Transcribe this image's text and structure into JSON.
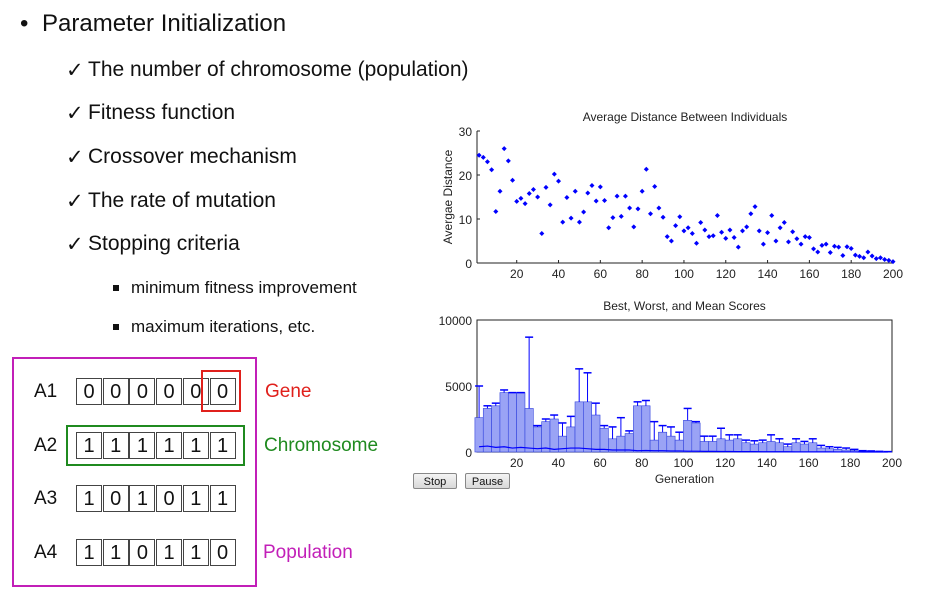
{
  "slide": {
    "title": "Parameter Initialization",
    "checks": [
      "The number of chromosome (population)",
      "Fitness function",
      "Crossover mechanism",
      "The rate of mutation",
      "Stopping criteria"
    ],
    "subs": [
      "minimum fitness improvement",
      "maximum iterations, etc."
    ],
    "check_mark": "✓",
    "bullet": "•"
  },
  "diagram": {
    "rows": [
      {
        "label": "A1",
        "genes": [
          "0",
          "0",
          "0",
          "0",
          "0",
          "0"
        ]
      },
      {
        "label": "A2",
        "genes": [
          "1",
          "1",
          "1",
          "1",
          "1",
          "1"
        ]
      },
      {
        "label": "A3",
        "genes": [
          "1",
          "0",
          "1",
          "0",
          "1",
          "1"
        ]
      },
      {
        "label": "A4",
        "genes": [
          "1",
          "1",
          "0",
          "1",
          "1",
          "0"
        ]
      }
    ],
    "gene_label": "Gene",
    "chromosome_label": "Chromosome",
    "population_label": "Population",
    "colors": {
      "gene": "#e0201c",
      "chromosome": "#1f8a1f",
      "population": "#c21fb8"
    }
  },
  "buttons": {
    "stop": "Stop",
    "pause": "Pause"
  },
  "chart_data": [
    {
      "type": "scatter",
      "title": "Average Distance Between Individuals",
      "xlabel": "",
      "ylabel": "Avergae Distance",
      "xlim": [
        1,
        200
      ],
      "ylim": [
        0,
        30
      ],
      "xticks": [
        20,
        40,
        60,
        80,
        100,
        120,
        140,
        160,
        180,
        200
      ],
      "yticks": [
        0,
        10,
        20,
        30
      ],
      "color": "#0000ff",
      "x_step": 2,
      "y": [
        24.5,
        24,
        23,
        21.2,
        11.7,
        16.3,
        26,
        23.2,
        18.8,
        14,
        14.7,
        13.5,
        15.8,
        16.7,
        15,
        6.7,
        17.2,
        13.2,
        20.2,
        18.6,
        9.3,
        14.9,
        10.2,
        16.3,
        9.3,
        11.6,
        15.9,
        17.6,
        14.1,
        17.3,
        14.2,
        8,
        10.3,
        15.2,
        10.6,
        15.2,
        12.5,
        8.2,
        12.3,
        16.3,
        21.3,
        11.2,
        17.4,
        12.5,
        10.4,
        6,
        5,
        8.5,
        10.5,
        7.3,
        8,
        6.7,
        4.5,
        9.2,
        7.5,
        6,
        6.2,
        10.8,
        7,
        5.6,
        7.5,
        5.8,
        3.6,
        7.3,
        8.2,
        11.2,
        12.8,
        7.3,
        4.3,
        6.9,
        10.8,
        5,
        8,
        9.2,
        4.8,
        7.1,
        5.5,
        4.3,
        6,
        5.8,
        3.2,
        2.5,
        4,
        4.3,
        2.4,
        3.8,
        3.6,
        1.7,
        3.7,
        3.3,
        1.8,
        1.5,
        1.2,
        2.5,
        1.6,
        1,
        1.2,
        0.8,
        0.6,
        0.3
      ]
    },
    {
      "type": "bar",
      "title": "Best, Worst, and Mean Scores",
      "xlabel": "Generation",
      "ylabel": "",
      "xlim": [
        1,
        200
      ],
      "ylim": [
        0,
        10000
      ],
      "xticks": [
        20,
        40,
        60,
        80,
        100,
        120,
        140,
        160,
        180,
        200
      ],
      "yticks": [
        0,
        5000,
        10000
      ],
      "color": "#0000ff",
      "x_step": 4,
      "series": [
        {
          "name": "Worst",
          "values": [
            5000,
            3500,
            3700,
            4700,
            4500,
            4500,
            8700,
            2000,
            2500,
            2800,
            2200,
            2700,
            6300,
            6000,
            3700,
            2000,
            1900,
            2600,
            1600,
            3800,
            3900,
            2300,
            2000,
            1900,
            1500,
            3300,
            2300,
            1200,
            1200,
            1800,
            1300,
            1300,
            900,
            850,
            900,
            1300,
            1000,
            600,
            1000,
            800,
            1000,
            500,
            400,
            350,
            300,
            200,
            100,
            80,
            50,
            30
          ]
        },
        {
          "name": "Mean",
          "values": [
            2600,
            3300,
            3500,
            4500,
            4500,
            4500,
            3300,
            1900,
            2300,
            2500,
            1200,
            1900,
            3800,
            3800,
            2800,
            1800,
            1000,
            1200,
            1400,
            3500,
            3500,
            900,
            1500,
            1200,
            900,
            2400,
            2200,
            800,
            800,
            1000,
            900,
            1000,
            700,
            600,
            700,
            800,
            700,
            400,
            700,
            600,
            700,
            300,
            250,
            200,
            150,
            100,
            50,
            40,
            20,
            10
          ]
        },
        {
          "name": "Best",
          "values": [
            400,
            450,
            350,
            400,
            300,
            350,
            300,
            250,
            300,
            200,
            250,
            300,
            300,
            250,
            200,
            200,
            150,
            150,
            150,
            100,
            120,
            100,
            100,
            80,
            80,
            60,
            60,
            50,
            50,
            40,
            40,
            30,
            30,
            30,
            20,
            20,
            20,
            20,
            10,
            10,
            10,
            10,
            10,
            5,
            5,
            5,
            0,
            0,
            0,
            0
          ]
        }
      ]
    }
  ]
}
